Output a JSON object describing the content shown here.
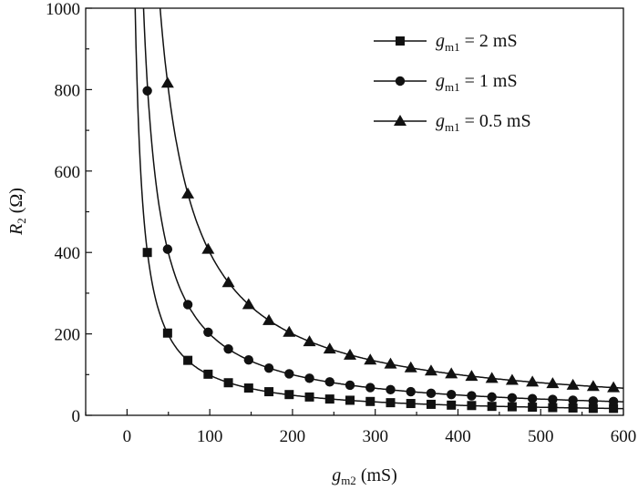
{
  "chart_data": {
    "type": "line",
    "xlabel": {
      "main": "g",
      "sub": "m2",
      "unit": " (mS)"
    },
    "ylabel": {
      "main": "R",
      "sub": "2",
      "unit": " (Ω)"
    },
    "xlim": [
      -50,
      600
    ],
    "ylim": [
      0,
      1000
    ],
    "xticks": [
      0,
      100,
      200,
      300,
      400,
      500,
      600
    ],
    "yticks": [
      0,
      200,
      400,
      600,
      800,
      1000
    ],
    "legend_position": "top-right",
    "grid": false,
    "line_color": "#111111",
    "series": [
      {
        "name": "2 mS",
        "legend": {
          "main": "g",
          "sub": "m1",
          "value": " = 2 mS"
        },
        "marker": "square",
        "x": [
          24.5,
          49,
          73.5,
          98,
          122.5,
          147,
          171.5,
          196,
          220.5,
          245,
          269.5,
          294,
          318.5,
          343,
          367.5,
          392,
          416.5,
          441,
          465.5,
          490,
          514.5,
          539,
          563.5,
          588
        ],
        "y": [
          400,
          202,
          135,
          101,
          80,
          67,
          58,
          51,
          45,
          40,
          37,
          34,
          31,
          29,
          27,
          25,
          24,
          22,
          21,
          20,
          19,
          18,
          17,
          17
        ]
      },
      {
        "name": "1 mS",
        "legend": {
          "main": "g",
          "sub": "m1",
          "value": " = 1 mS"
        },
        "marker": "circle",
        "x": [
          24.5,
          49,
          73.5,
          98,
          122.5,
          147,
          171.5,
          196,
          220.5,
          245,
          269.5,
          294,
          318.5,
          343,
          367.5,
          392,
          416.5,
          441,
          465.5,
          490,
          514.5,
          539,
          563.5,
          588
        ],
        "y": [
          797,
          408,
          272,
          204,
          163,
          136,
          116,
          102,
          91,
          82,
          74,
          68,
          63,
          58,
          54,
          51,
          48,
          45,
          43,
          41,
          39,
          37,
          35,
          34
        ]
      },
      {
        "name": "0.5 mS",
        "legend": {
          "main": "g",
          "sub": "m1",
          "value": " = 0.5 mS"
        },
        "marker": "triangle",
        "x": [
          49,
          73.5,
          98,
          122.5,
          147,
          171.5,
          196,
          220.5,
          245,
          269.5,
          294,
          318.5,
          343,
          367.5,
          392,
          416.5,
          441,
          465.5,
          490,
          514.5,
          539,
          563.5,
          588
        ],
        "y": [
          816,
          544,
          408,
          326,
          272,
          233,
          204,
          181,
          163,
          148,
          136,
          126,
          117,
          109,
          102,
          96,
          91,
          86,
          82,
          78,
          74,
          71,
          68
        ]
      }
    ]
  }
}
